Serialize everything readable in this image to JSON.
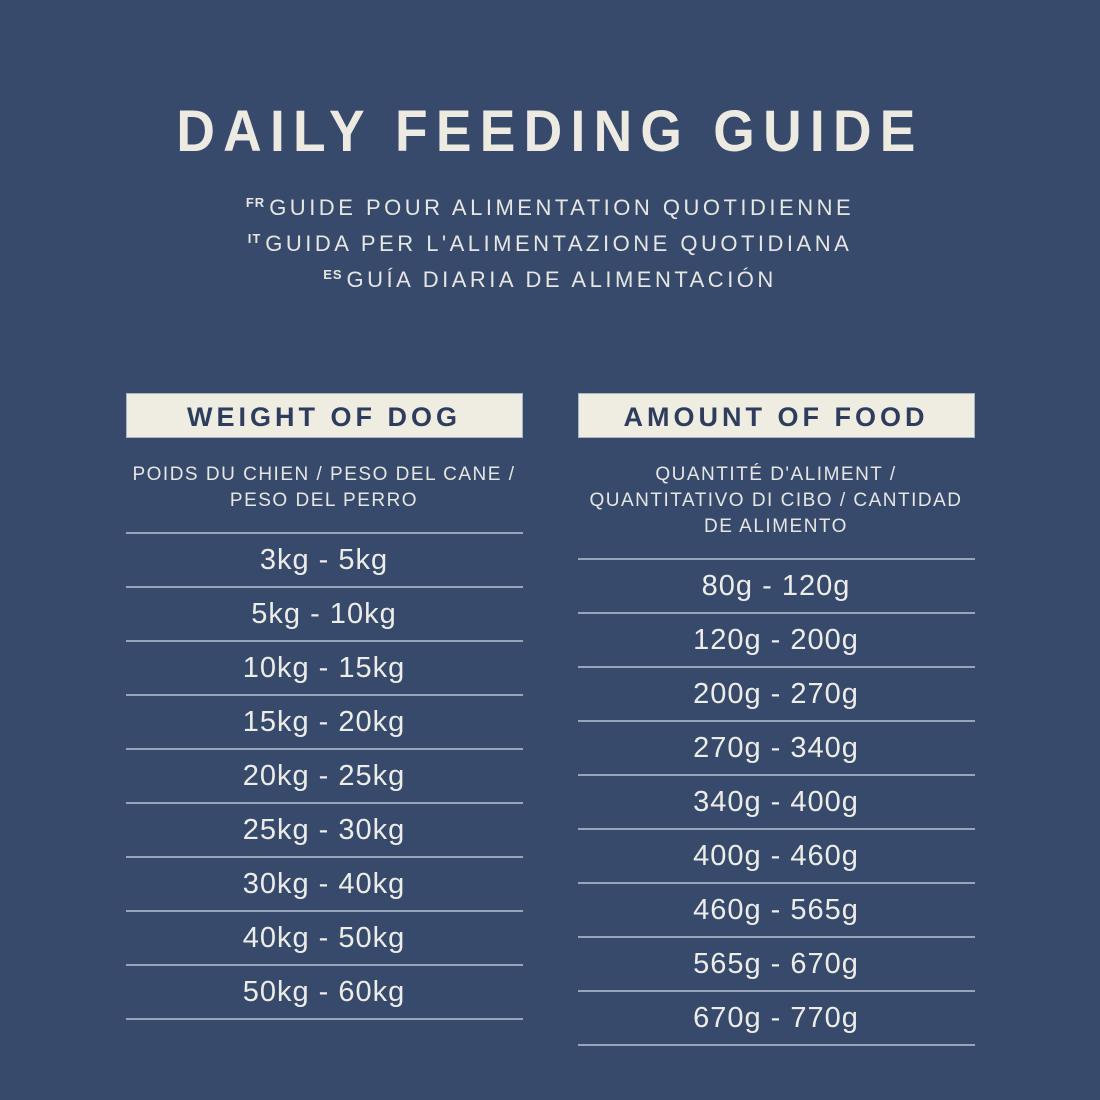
{
  "header": {
    "title": "DAILY FEEDING GUIDE",
    "subtitles": [
      {
        "lang": "FR",
        "text": "GUIDE POUR ALIMENTATION QUOTIDIENNE"
      },
      {
        "lang": "IT",
        "text": "GUIDA PER L'ALIMENTAZIONE QUOTIDIANA"
      },
      {
        "lang": "ES",
        "text": "GUÍA DIARIA DE ALIMENTACIÓN"
      }
    ]
  },
  "table": {
    "columns": [
      {
        "header": "WEIGHT OF DOG",
        "subheader": "POIDS DU CHIEN / PESO DEL CANE / PESO DEL PERRO",
        "rows": [
          "3kg - 5kg",
          "5kg - 10kg",
          "10kg - 15kg",
          "15kg - 20kg",
          "20kg - 25kg",
          "25kg - 30kg",
          "30kg - 40kg",
          "40kg - 50kg",
          "50kg - 60kg"
        ]
      },
      {
        "header": "AMOUNT OF FOOD",
        "subheader": "QUANTITÉ D'ALIMENT / QUANTITATIVO DI CIBO / CANTIDAD DE ALIMENTO",
        "rows": [
          "80g - 120g",
          "120g - 200g",
          "200g - 270g",
          "270g - 340g",
          "340g - 400g",
          "400g - 460g",
          "460g - 565g",
          "565g - 670g",
          "670g - 770g"
        ]
      }
    ]
  },
  "colors": {
    "background": "#384a6b",
    "cream_box": "#efece1",
    "header_text": "#2e3d5d",
    "body_text": "#ecece8",
    "divider": "#97a4ba"
  }
}
